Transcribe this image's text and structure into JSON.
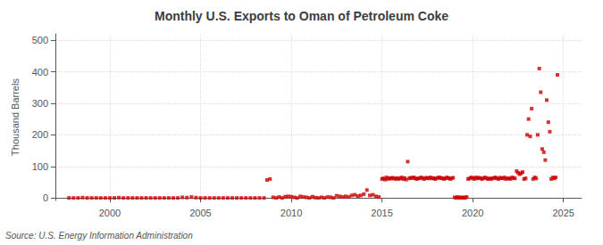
{
  "chart_data": {
    "type": "scatter",
    "title": "Monthly U.S. Exports to Oman of Petroleum Coke",
    "ylabel": "Thousand Barrels",
    "source": "Source: U.S. Energy Information Administration",
    "color": "#CC0000",
    "marker": "square",
    "grid": true,
    "xlim": [
      1997.0,
      2026.0
    ],
    "ylim": [
      -8,
      520
    ],
    "xticks": [
      2000,
      2005,
      2010,
      2015,
      2020,
      2025
    ],
    "yticks": [
      0,
      100,
      200,
      300,
      400,
      500
    ],
    "x": [
      1997.75,
      1998.0,
      1998.25,
      1998.5,
      1998.75,
      1999.0,
      1999.25,
      1999.5,
      1999.75,
      2000.0,
      2000.25,
      2000.5,
      2000.75,
      2001.0,
      2001.25,
      2001.5,
      2001.75,
      2002.0,
      2002.25,
      2002.5,
      2002.75,
      2003.0,
      2003.25,
      2003.5,
      2003.75,
      2004.0,
      2004.25,
      2004.5,
      2004.75,
      2005.0,
      2005.25,
      2005.5,
      2005.75,
      2006.0,
      2006.25,
      2006.5,
      2006.75,
      2007.0,
      2007.25,
      2007.5,
      2007.75,
      2008.0,
      2008.25,
      2008.5,
      2008.67,
      2008.83,
      2009.0,
      2009.17,
      2009.33,
      2009.5,
      2009.67,
      2009.83,
      2010.0,
      2010.17,
      2010.33,
      2010.5,
      2010.67,
      2010.83,
      2011.0,
      2011.17,
      2011.33,
      2011.5,
      2011.67,
      2011.83,
      2012.0,
      2012.17,
      2012.33,
      2012.5,
      2012.67,
      2012.83,
      2013.0,
      2013.17,
      2013.33,
      2013.5,
      2013.67,
      2013.83,
      2014.0,
      2014.17,
      2014.33,
      2014.5,
      2014.67,
      2014.83,
      2015.0,
      2015.08,
      2015.17,
      2015.25,
      2015.33,
      2015.42,
      2015.5,
      2015.58,
      2015.67,
      2015.75,
      2015.83,
      2015.92,
      2016.0,
      2016.08,
      2016.17,
      2016.25,
      2016.33,
      2016.42,
      2016.5,
      2016.58,
      2016.67,
      2016.75,
      2016.83,
      2016.92,
      2017.0,
      2017.08,
      2017.17,
      2017.25,
      2017.33,
      2017.42,
      2017.5,
      2017.58,
      2017.67,
      2017.75,
      2017.83,
      2017.92,
      2018.0,
      2018.08,
      2018.17,
      2018.25,
      2018.33,
      2018.42,
      2018.5,
      2018.58,
      2018.67,
      2018.75,
      2018.83,
      2018.92,
      2019.0,
      2019.08,
      2019.17,
      2019.25,
      2019.33,
      2019.42,
      2019.5,
      2019.58,
      2019.67,
      2019.75,
      2019.83,
      2019.92,
      2020.0,
      2020.08,
      2020.17,
      2020.25,
      2020.33,
      2020.42,
      2020.5,
      2020.58,
      2020.67,
      2020.75,
      2020.83,
      2020.92,
      2021.0,
      2021.08,
      2021.17,
      2021.25,
      2021.33,
      2021.42,
      2021.5,
      2021.58,
      2021.67,
      2021.75,
      2021.83,
      2021.92,
      2022.0,
      2022.08,
      2022.17,
      2022.25,
      2022.33,
      2022.42,
      2022.5,
      2022.58,
      2022.67,
      2022.75,
      2022.83,
      2022.92,
      2023.0,
      2023.08,
      2023.17,
      2023.25,
      2023.33,
      2023.42,
      2023.5,
      2023.58,
      2023.67,
      2023.75,
      2023.83,
      2023.92,
      2024.0,
      2024.08,
      2024.17,
      2024.25,
      2024.33,
      2024.42,
      2024.5,
      2024.58,
      2024.67
    ],
    "values": [
      0,
      0,
      0,
      1,
      0,
      0,
      0,
      0,
      0,
      0,
      0,
      1,
      0,
      0,
      0,
      0,
      0,
      0,
      0,
      0,
      0,
      0,
      0,
      0,
      0,
      2,
      1,
      3,
      1,
      0,
      0,
      0,
      0,
      0,
      0,
      0,
      0,
      0,
      0,
      0,
      0,
      0,
      0,
      0,
      57,
      60,
      2,
      0,
      3,
      0,
      4,
      5,
      4,
      2,
      0,
      5,
      3,
      2,
      0,
      4,
      1,
      0,
      2,
      0,
      3,
      2,
      0,
      7,
      5,
      3,
      5,
      3,
      8,
      10,
      6,
      8,
      12,
      25,
      8,
      10,
      5,
      3,
      60,
      62,
      58,
      65,
      60,
      63,
      61,
      64,
      62,
      60,
      63,
      60,
      62,
      65,
      60,
      63,
      58,
      115,
      62,
      64,
      63,
      65,
      62,
      60,
      62,
      63,
      65,
      62,
      60,
      64,
      63,
      62,
      65,
      62,
      63,
      60,
      62,
      64,
      65,
      62,
      63,
      60,
      62,
      65,
      63,
      60,
      62,
      64,
      2,
      0,
      3,
      0,
      2,
      0,
      2,
      0,
      3,
      60,
      62,
      65,
      63,
      60,
      65,
      62,
      64,
      63,
      60,
      62,
      65,
      63,
      60,
      62,
      60,
      62,
      63,
      65,
      62,
      60,
      64,
      63,
      62,
      65,
      60,
      62,
      62,
      60,
      65,
      63,
      62,
      85,
      80,
      75,
      78,
      82,
      60,
      62,
      200,
      250,
      195,
      283,
      60,
      65,
      62,
      200,
      410,
      335,
      155,
      145,
      120,
      310,
      240,
      210,
      60,
      65,
      62,
      65,
      390
    ]
  }
}
